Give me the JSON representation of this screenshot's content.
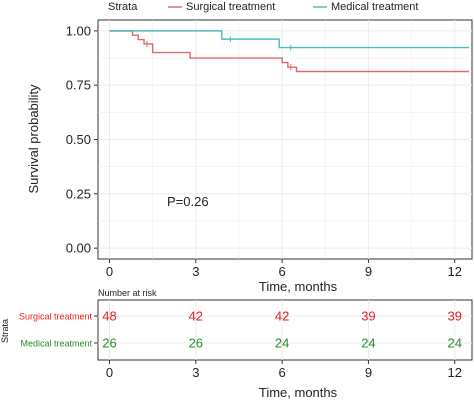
{
  "chart_data": [
    {
      "type": "line",
      "subtype": "kaplan-meier",
      "legend_title": "Strata",
      "legend_position": "top",
      "xlabel": "Time, months",
      "ylabel": "Survival probability",
      "xlim": [
        -0.4,
        12.6
      ],
      "ylim": [
        -0.05,
        1.05
      ],
      "xticks": [
        "0",
        "3",
        "6",
        "9",
        "12"
      ],
      "yticks": [
        "0.00",
        "0.25",
        "0.50",
        "0.75",
        "1.00"
      ],
      "grid": true,
      "annotation": "P=0.26",
      "series": [
        {
          "name": "Surgical treatment",
          "color": "#e06a6a",
          "steps": [
            [
              0,
              1.0
            ],
            [
              0.8,
              0.98
            ],
            [
              1.0,
              0.96
            ],
            [
              1.2,
              0.94
            ],
            [
              1.5,
              0.9
            ],
            [
              2.8,
              0.875
            ],
            [
              6.0,
              0.854
            ],
            [
              6.2,
              0.833
            ],
            [
              6.5,
              0.813
            ],
            [
              12.5,
              0.813
            ]
          ],
          "censored_x": [
            1.3,
            6.3
          ]
        },
        {
          "name": "Medical treatment",
          "color": "#4dbdbd",
          "steps": [
            [
              0,
              1.0
            ],
            [
              3.9,
              0.962
            ],
            [
              5.9,
              0.923
            ],
            [
              12.5,
              0.923
            ]
          ],
          "censored_x": [
            4.2,
            6.3
          ]
        }
      ]
    },
    {
      "type": "table",
      "title": "Number at risk",
      "row_axis_label": "Strata",
      "xlabel": "Time, months",
      "xticks": [
        "0",
        "3",
        "6",
        "9",
        "12"
      ],
      "rows": [
        {
          "name": "Surgical treatment",
          "color": "#e02020",
          "values": [
            48,
            42,
            42,
            39,
            39
          ]
        },
        {
          "name": "Medical treatment",
          "color": "#2a8a2a",
          "values": [
            26,
            26,
            24,
            24,
            24
          ]
        }
      ]
    }
  ]
}
